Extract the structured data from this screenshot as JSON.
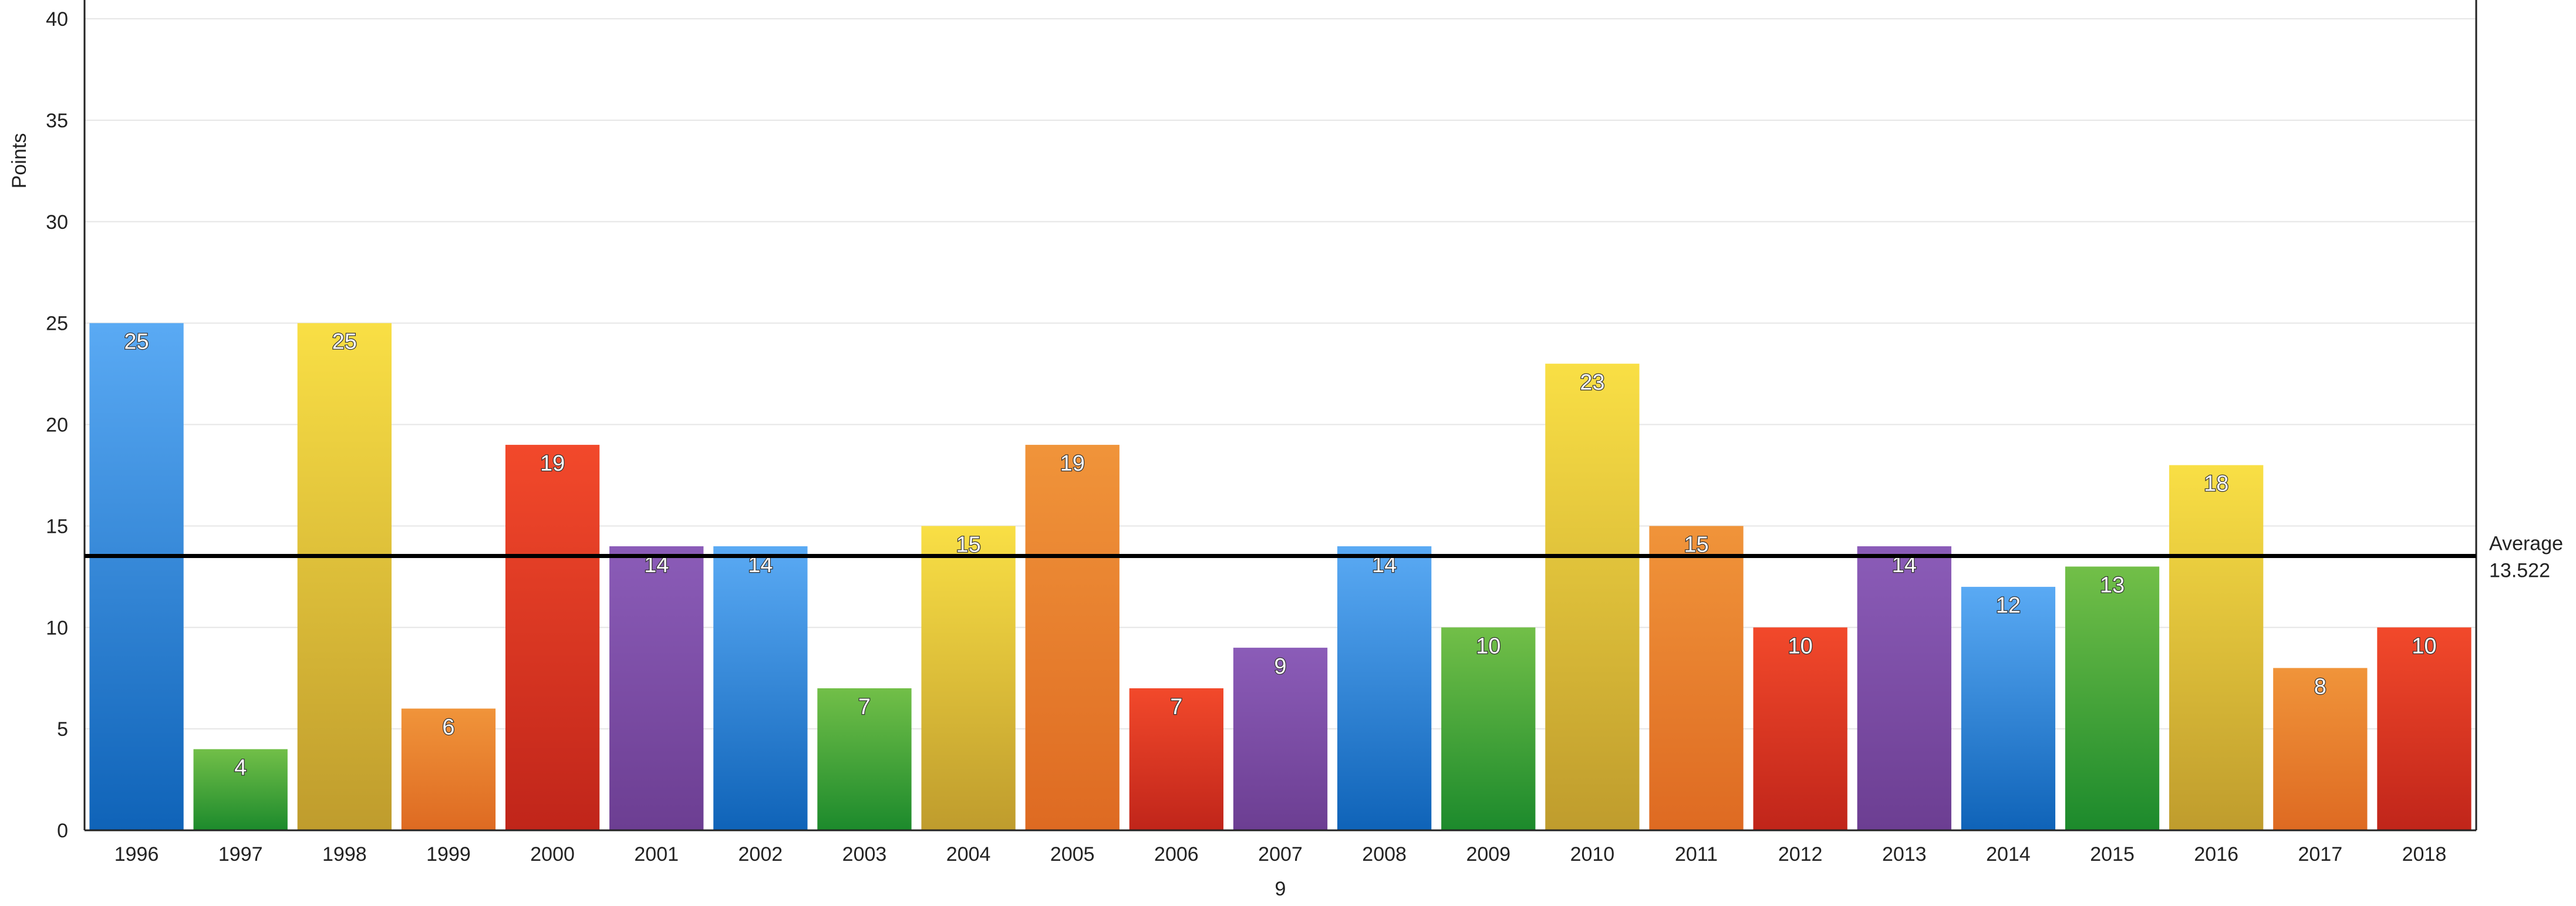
{
  "chart_data": {
    "type": "bar",
    "title": "",
    "xlabel": "9",
    "ylabel": "Points",
    "ylim": [
      0,
      40
    ],
    "yticks": [
      0,
      5,
      10,
      15,
      20,
      25,
      30,
      35,
      40
    ],
    "grid": true,
    "categories": [
      "1996",
      "1997",
      "1998",
      "1999",
      "2000",
      "2001",
      "2002",
      "2003",
      "2004",
      "2005",
      "2006",
      "2007",
      "2008",
      "2009",
      "2010",
      "2011",
      "2012",
      "2013",
      "2014",
      "2015",
      "2016",
      "2017",
      "2018"
    ],
    "values": [
      25,
      4,
      25,
      6,
      19,
      14,
      14,
      7,
      15,
      19,
      7,
      9,
      14,
      10,
      23,
      15,
      10,
      14,
      12,
      13,
      18,
      8,
      10
    ],
    "bar_colors": [
      "blue",
      "green",
      "yellow",
      "orange",
      "red",
      "purple",
      "blue",
      "green",
      "yellow",
      "orange",
      "red",
      "purple",
      "blue",
      "green",
      "yellow",
      "orange",
      "red",
      "purple",
      "blue",
      "green",
      "yellow",
      "orange",
      "red"
    ],
    "reference_line": {
      "label": "Average",
      "value": 13.522,
      "value_text": "13.522"
    }
  },
  "palette": {
    "blue": {
      "top": "#5aaaf4",
      "bottom": "#0f63b8"
    },
    "green": {
      "top": "#72bf48",
      "bottom": "#1c8a2c"
    },
    "yellow": {
      "top": "#f9df45",
      "bottom": "#bf9c2d"
    },
    "orange": {
      "top": "#f0943a",
      "bottom": "#de6a22"
    },
    "red": {
      "top": "#f2492b",
      "bottom": "#c0251a"
    },
    "purple": {
      "top": "#8b5cb8",
      "bottom": "#6c3e92"
    },
    "grid": "#e6e6e6",
    "axis": "#222222",
    "average_line": "#000000"
  }
}
